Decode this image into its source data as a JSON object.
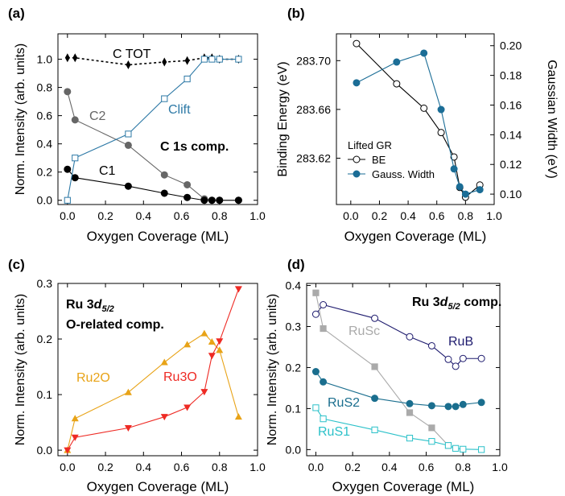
{
  "chart_data": [
    {
      "panel": "(a)",
      "type": "scatter",
      "xlabel": "Oxygen Coverage (ML)",
      "ylabel": "Norm. Intensity (arb. units)",
      "xlim": [
        -0.05,
        1.0
      ],
      "ylim": [
        -0.03,
        1.18
      ],
      "xticks": [
        "0.0",
        "0.2",
        "0.4",
        "0.6",
        "0.8",
        "1.0"
      ],
      "yticks": [
        "0.0",
        "0.2",
        "0.4",
        "0.6",
        "0.8",
        "1.0"
      ],
      "annotation": "C 1s comp.",
      "series": [
        {
          "name": "C TOT",
          "color": "#000000",
          "marker": "diamond",
          "dashed": true,
          "x": [
            0.0,
            0.04,
            0.32,
            0.51,
            0.63,
            0.72,
            0.76,
            0.8,
            0.9
          ],
          "y": [
            1.01,
            1.01,
            0.96,
            0.98,
            0.99,
            1.01,
            1.01,
            1.0,
            1.0
          ]
        },
        {
          "name": "C2",
          "color": "#666666",
          "marker": "circle",
          "x": [
            0.0,
            0.04,
            0.32,
            0.51,
            0.63,
            0.72,
            0.76,
            0.8,
            0.9
          ],
          "y": [
            0.77,
            0.57,
            0.39,
            0.18,
            0.11,
            0.01,
            0.0,
            0.0,
            0.0
          ]
        },
        {
          "name": "C1",
          "color": "#000000",
          "marker": "circle",
          "x": [
            0.0,
            0.04,
            0.32,
            0.51,
            0.63,
            0.72,
            0.76,
            0.8,
            0.9
          ],
          "y": [
            0.22,
            0.16,
            0.1,
            0.05,
            0.02,
            0.0,
            0.0,
            0.0,
            0.0
          ]
        },
        {
          "name": "Clift",
          "color": "#2d79a6",
          "marker": "open-square",
          "x": [
            0.0,
            0.04,
            0.32,
            0.51,
            0.63,
            0.72,
            0.76,
            0.8,
            0.9
          ],
          "y": [
            0.0,
            0.3,
            0.47,
            0.72,
            0.86,
            1.0,
            1.0,
            1.0,
            1.0
          ]
        }
      ]
    },
    {
      "panel": "(b)",
      "type": "scatter",
      "xlabel": "Oxygen Coverage (ML)",
      "ylabel": "Binding Energy (eV)",
      "ylabel_right": "Gaussian Width (eV)",
      "xlim": [
        -0.1,
        1.0
      ],
      "ylim": [
        283.582,
        283.722
      ],
      "ylim_right": [
        0.093,
        0.208
      ],
      "xticks": [
        "0.0",
        "0.2",
        "0.4",
        "0.6",
        "0.8",
        "1.0"
      ],
      "yticks": [
        "283.62",
        "283.66",
        "283.70"
      ],
      "yticks_right": [
        "0.10",
        "0.12",
        "0.14",
        "0.16",
        "0.18",
        "0.20"
      ],
      "legend_title": "Lifted GR",
      "legend_position": "lower-left",
      "series": [
        {
          "name": "BE",
          "color": "#000000",
          "marker": "open-circle",
          "axis": "left",
          "x": [
            0.04,
            0.32,
            0.51,
            0.63,
            0.72,
            0.76,
            0.8,
            0.9
          ],
          "y": [
            283.714,
            283.681,
            283.661,
            283.641,
            283.621,
            283.596,
            283.588,
            283.598
          ]
        },
        {
          "name": "Gauss. Width",
          "color": "#1b6d96",
          "marker": "filled-circle",
          "axis": "right",
          "x": [
            0.04,
            0.32,
            0.51,
            0.63,
            0.72,
            0.76,
            0.8,
            0.9
          ],
          "y": [
            0.175,
            0.189,
            0.195,
            0.157,
            0.117,
            0.105,
            0.1,
            0.103
          ]
        }
      ]
    },
    {
      "panel": "(c)",
      "type": "scatter",
      "xlabel": "Oxygen Coverage (ML)",
      "ylabel": "Norm. Intensity (arb. units)",
      "xlim": [
        -0.05,
        1.0
      ],
      "ylim": [
        -0.01,
        0.3
      ],
      "xticks": [
        "0.0",
        "0.2",
        "0.4",
        "0.6",
        "0.8",
        "1.0"
      ],
      "yticks": [
        "0.0",
        "0.1",
        "0.2",
        "0.3"
      ],
      "annotation_line1": "Ru 3d5/2",
      "annotation_line2": "O-related comp.",
      "series": [
        {
          "name": "Ru2O",
          "color": "#e8a317",
          "marker": "triangle-up",
          "x": [
            0.0,
            0.04,
            0.32,
            0.51,
            0.63,
            0.72,
            0.76,
            0.8,
            0.9
          ],
          "y": [
            0.0,
            0.057,
            0.104,
            0.158,
            0.19,
            0.21,
            0.195,
            0.18,
            0.06
          ]
        },
        {
          "name": "Ru3O",
          "color": "#ee2a24",
          "marker": "triangle-down",
          "x": [
            0.0,
            0.04,
            0.32,
            0.51,
            0.63,
            0.72,
            0.76,
            0.8,
            0.9
          ],
          "y": [
            0.0,
            0.023,
            0.04,
            0.06,
            0.077,
            0.105,
            0.17,
            0.196,
            0.29
          ]
        }
      ]
    },
    {
      "panel": "(d)",
      "type": "scatter",
      "xlabel": "Oxygen Coverage (ML)",
      "ylabel": "Norm. Intensity (arb. units)",
      "xlim": [
        -0.05,
        1.0
      ],
      "ylim": [
        -0.015,
        0.405
      ],
      "xticks": [
        "0.0",
        "0.2",
        "0.4",
        "0.6",
        "0.8",
        "1.0"
      ],
      "yticks": [
        "0.0",
        "0.1",
        "0.2",
        "0.3",
        "0.4"
      ],
      "annotation_line1": "Ru 3d5/2 comp.",
      "series": [
        {
          "name": "RuB",
          "color": "#1e1b6e",
          "marker": "open-circle",
          "x": [
            0.0,
            0.04,
            0.32,
            0.51,
            0.63,
            0.72,
            0.76,
            0.8,
            0.9
          ],
          "y": [
            0.33,
            0.353,
            0.32,
            0.275,
            0.253,
            0.22,
            0.203,
            0.222,
            0.222
          ]
        },
        {
          "name": "RuSc",
          "color": "#aaaaaa",
          "marker": "filled-square",
          "x": [
            0.0,
            0.04,
            0.32,
            0.51,
            0.63,
            0.72
          ],
          "y": [
            0.382,
            0.295,
            0.202,
            0.09,
            0.053,
            0.01
          ]
        },
        {
          "name": "RuS2",
          "color": "#1a6e8e",
          "marker": "filled-circle",
          "x": [
            0.0,
            0.04,
            0.32,
            0.51,
            0.63,
            0.72,
            0.76,
            0.8,
            0.9
          ],
          "y": [
            0.19,
            0.165,
            0.125,
            0.112,
            0.107,
            0.105,
            0.105,
            0.11,
            0.115
          ]
        },
        {
          "name": "RuS1",
          "color": "#2bc1c9",
          "marker": "open-square",
          "x": [
            0.0,
            0.04,
            0.32,
            0.51,
            0.63,
            0.72,
            0.76,
            0.8,
            0.9
          ],
          "y": [
            0.102,
            0.075,
            0.048,
            0.028,
            0.02,
            0.01,
            0.003,
            0.001,
            0.0
          ]
        }
      ]
    }
  ]
}
